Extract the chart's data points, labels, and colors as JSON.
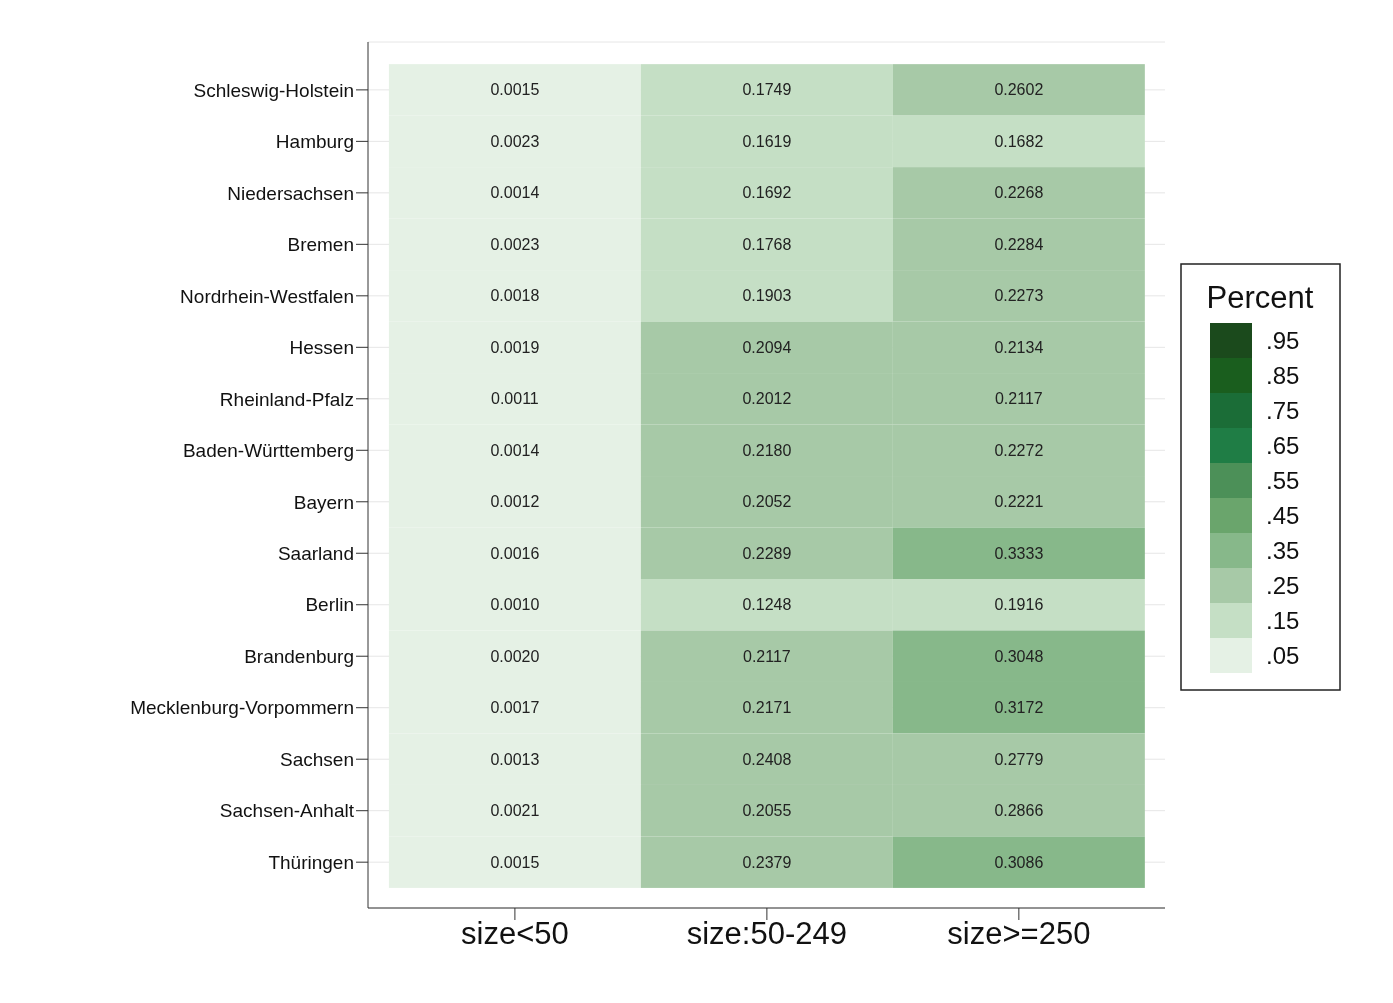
{
  "chart_data": {
    "type": "heatmap",
    "clabel": "Percent",
    "categories": [
      "size<50",
      "size:50-249",
      "size>=250"
    ],
    "y_categories": [
      "Schleswig-Holstein",
      "Hamburg",
      "Niedersachsen",
      "Bremen",
      "Nordrhein-Westfalen",
      "Hessen",
      "Rheinland-Pfalz",
      "Baden-Württemberg",
      "Bayern",
      "Saarland",
      "Berlin",
      "Brandenburg",
      "Mecklenburg-Vorpommern",
      "Sachsen",
      "Sachsen-Anhalt",
      "Thüringen"
    ],
    "cells": [
      [
        0.0015,
        0.1749,
        0.2602
      ],
      [
        0.0023,
        0.1619,
        0.1682
      ],
      [
        0.0014,
        0.1692,
        0.2268
      ],
      [
        0.0023,
        0.1768,
        0.2284
      ],
      [
        0.0018,
        0.1903,
        0.2273
      ],
      [
        0.0019,
        0.2094,
        0.2134
      ],
      [
        0.0011,
        0.2012,
        0.2117
      ],
      [
        0.0014,
        0.218,
        0.2272
      ],
      [
        0.0012,
        0.2052,
        0.2221
      ],
      [
        0.0016,
        0.2289,
        0.3333
      ],
      [
        0.001,
        0.1248,
        0.1916
      ],
      [
        0.002,
        0.2117,
        0.3048
      ],
      [
        0.0017,
        0.2171,
        0.3172
      ],
      [
        0.0013,
        0.2408,
        0.2779
      ],
      [
        0.0021,
        0.2055,
        0.2866
      ],
      [
        0.0015,
        0.2379,
        0.3086
      ]
    ],
    "cell_labels": [
      [
        "0.0015",
        "0.1749",
        "0.2602"
      ],
      [
        "0.0023",
        "0.1619",
        "0.1682"
      ],
      [
        "0.0014",
        "0.1692",
        "0.2268"
      ],
      [
        "0.0023",
        "0.1768",
        "0.2284"
      ],
      [
        "0.0018",
        "0.1903",
        "0.2273"
      ],
      [
        "0.0019",
        "0.2094",
        "0.2134"
      ],
      [
        "0.0011",
        "0.2012",
        "0.2117"
      ],
      [
        "0.0014",
        "0.2180",
        "0.2272"
      ],
      [
        "0.0012",
        "0.2052",
        "0.2221"
      ],
      [
        "0.0016",
        "0.2289",
        "0.3333"
      ],
      [
        "0.0010",
        "0.1248",
        "0.1916"
      ],
      [
        "0.0020",
        "0.2117",
        "0.3048"
      ],
      [
        "0.0017",
        "0.2171",
        "0.3172"
      ],
      [
        "0.0013",
        "0.2408",
        "0.2779"
      ],
      [
        "0.0021",
        "0.2055",
        "0.2866"
      ],
      [
        "0.0015",
        "0.2379",
        "0.3086"
      ]
    ],
    "clim": [
      0,
      1
    ],
    "cticks": [
      {
        "value": 0.05,
        "label": ".05"
      },
      {
        "value": 0.15,
        "label": ".15"
      },
      {
        "value": 0.25,
        "label": ".25"
      },
      {
        "value": 0.35,
        "label": ".35"
      },
      {
        "value": 0.45,
        "label": ".45"
      },
      {
        "value": 0.55,
        "label": ".55"
      },
      {
        "value": 0.65,
        "label": ".65"
      },
      {
        "value": 0.75,
        "label": ".75"
      },
      {
        "value": 0.85,
        "label": ".85"
      },
      {
        "value": 0.95,
        "label": ".95"
      }
    ],
    "colors": [
      "#e5f1e5",
      "#c5dfc5",
      "#a7c9a7",
      "#87b88a",
      "#6aa56c",
      "#4c9058",
      "#1f7d45",
      "#1b6d37",
      "#1a5e1e",
      "#1b4a1c"
    ],
    "grid": "y"
  }
}
